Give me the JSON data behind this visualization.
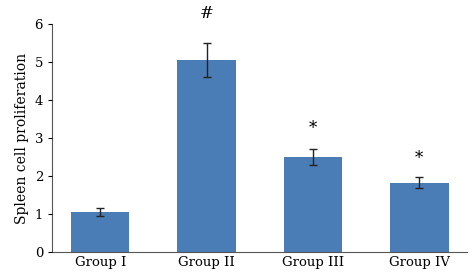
{
  "categories": [
    "Group I",
    "Group II",
    "Group III",
    "Group IV"
  ],
  "values": [
    1.05,
    5.05,
    2.5,
    1.82
  ],
  "errors": [
    0.1,
    0.45,
    0.22,
    0.15
  ],
  "bar_color": "#4a7db5",
  "ylabel": "Spleen cell proliferation",
  "ylim": [
    0,
    6
  ],
  "yticks": [
    0,
    1,
    2,
    3,
    4,
    5,
    6
  ],
  "annotations": [
    "",
    "#",
    "*",
    "*"
  ],
  "annotation_offsets": [
    0.15,
    0.55,
    0.3,
    0.25
  ],
  "annotation_fontsize": 12,
  "ylabel_fontsize": 10,
  "tick_fontsize": 9.5,
  "bar_width": 0.55,
  "background_color": "#ffffff",
  "ecolor": "#222222",
  "capsize": 3,
  "spine_color": "#555555"
}
